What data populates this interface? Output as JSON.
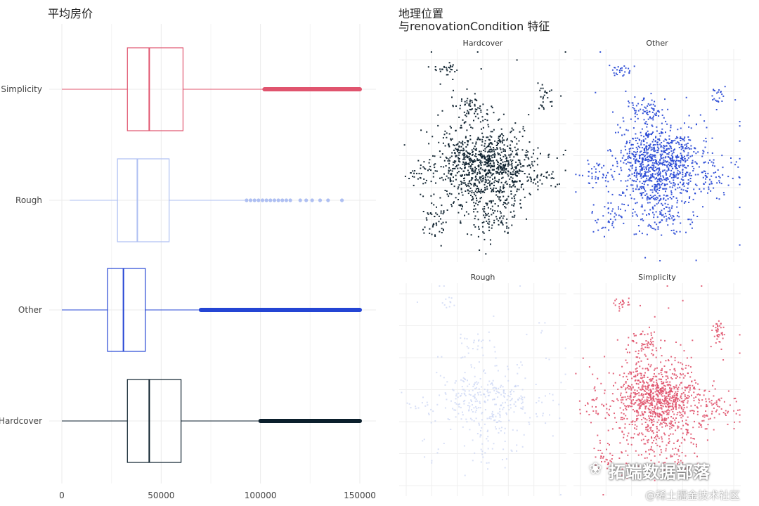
{
  "chart_data": [
    {
      "type": "boxplot",
      "title": "平均房价",
      "orientation": "horizontal",
      "xlim": [
        0,
        155000
      ],
      "xticks": [
        0,
        50000,
        100000,
        150000
      ],
      "xtick_labels": [
        "0",
        "50000",
        "100000",
        "150000"
      ],
      "categories": [
        "Simplicity",
        "Rough",
        "Other",
        "Hardcover"
      ],
      "colors": {
        "Simplicity": "#e0546e",
        "Rough": "#aebff2",
        "Other": "#2445d4",
        "Hardcover": "#0b1f2c"
      },
      "boxes": [
        {
          "name": "Simplicity",
          "min": 0,
          "q1": 33000,
          "median": 44000,
          "q3": 61000,
          "whisker_max": 102000,
          "outlier_range": [
            102000,
            150000
          ],
          "outliers_dense": true
        },
        {
          "name": "Rough",
          "min": 4000,
          "q1": 28000,
          "median": 38000,
          "q3": 54000,
          "whisker_max": 92000,
          "outliers": [
            93000,
            95000,
            97000,
            99000,
            101000,
            103000,
            105000,
            107000,
            109000,
            111000,
            113000,
            115000,
            120000,
            123000,
            126000,
            130000,
            134000,
            141000
          ]
        },
        {
          "name": "Other",
          "min": 0,
          "q1": 23000,
          "median": 31000,
          "q3": 42000,
          "whisker_max": 70000,
          "outlier_range": [
            70000,
            150000
          ],
          "outliers_dense": true
        },
        {
          "name": "Hardcover",
          "min": 0,
          "q1": 33000,
          "median": 44000,
          "q3": 60000,
          "whisker_max": 100000,
          "outlier_range": [
            100000,
            150000
          ],
          "outliers_dense": true
        }
      ]
    },
    {
      "type": "scatter",
      "title_line1": "地理位置",
      "title_line2": "与renovationCondition 特征",
      "facets": [
        {
          "name": "Hardcover",
          "color": "#0b1f2c",
          "density": 1300,
          "opacity": 0.95
        },
        {
          "name": "Other",
          "color": "#2445d4",
          "density": 1300,
          "opacity": 0.9
        },
        {
          "name": "Rough",
          "color": "#c8d3f4",
          "density": 420,
          "opacity": 0.7
        },
        {
          "name": "Simplicity",
          "color": "#e0546e",
          "density": 1300,
          "opacity": 0.9
        }
      ]
    }
  ],
  "watermark": {
    "brand": "拓端数据部落",
    "site": "@稀土掘金技术社区",
    "icon": "wechat-icon"
  }
}
